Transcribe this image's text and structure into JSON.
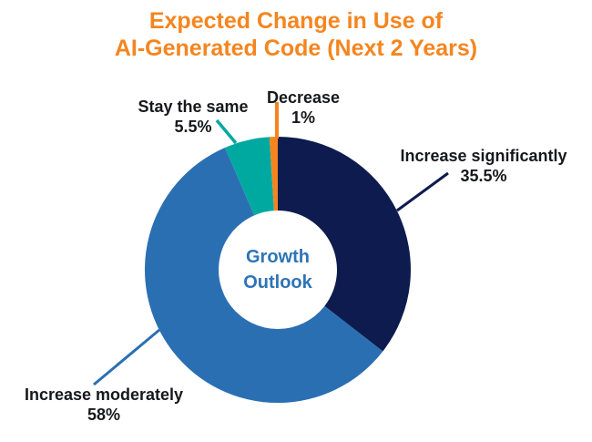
{
  "title": {
    "line1": "Expected Change in Use of",
    "line2": "AI-Generated Code (Next 2 Years)",
    "color": "#f5851f"
  },
  "center_label": {
    "line1": "Growth",
    "line2": "Outlook",
    "color": "#2e74b6"
  },
  "text_color": "#17181c",
  "chart_data": {
    "type": "pie",
    "subtype": "donut",
    "title": "Expected Change in Use of AI-Generated Code (Next 2 Years)",
    "center_label": "Growth Outlook",
    "start_angle_deg": 0,
    "direction": "clockwise",
    "inner_radius_ratio": 0.45,
    "legend_position": "none",
    "slices": [
      {
        "label": "Increase significantly",
        "value": 35.5,
        "value_label": "35.5%",
        "color": "#0d1b4e"
      },
      {
        "label": "Increase moderately",
        "value": 58,
        "value_label": "58%",
        "color": "#2b6fb3"
      },
      {
        "label": "Stay the same",
        "value": 5.5,
        "value_label": "5.5%",
        "color": "#00a9a0"
      },
      {
        "label": "Decrease",
        "value": 1,
        "value_label": "1%",
        "color": "#f5841f"
      }
    ]
  }
}
